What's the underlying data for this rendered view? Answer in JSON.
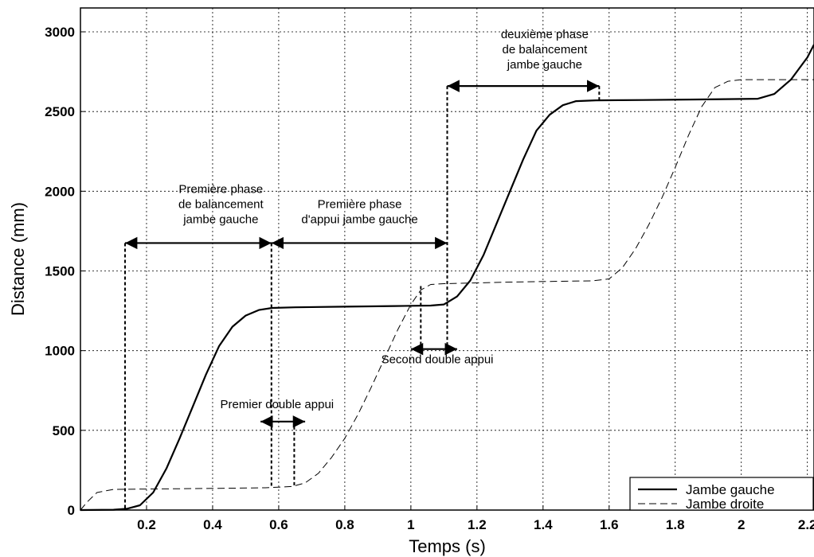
{
  "chart_data": {
    "type": "line",
    "xlabel": "Temps (s)",
    "ylabel": "Distance (mm)",
    "xlim": [
      0,
      2.22
    ],
    "ylim": [
      0,
      3000
    ],
    "grid": true,
    "legend_position": "bottom-right",
    "x_ticks": [
      "0.2",
      "0.4",
      "0.6",
      "0.8",
      "1",
      "1.2",
      "1.4",
      "1.6",
      "1.8",
      "2",
      "2.2"
    ],
    "y_ticks": [
      "0",
      "500",
      "1000",
      "1500",
      "2000",
      "2500",
      "3000"
    ],
    "series": [
      {
        "name": "Jambe gauche",
        "style": "solid",
        "points": [
          [
            0,
            0
          ],
          [
            0.1,
            2
          ],
          [
            0.14,
            8
          ],
          [
            0.18,
            30
          ],
          [
            0.22,
            110
          ],
          [
            0.26,
            260
          ],
          [
            0.3,
            450
          ],
          [
            0.34,
            650
          ],
          [
            0.38,
            850
          ],
          [
            0.42,
            1030
          ],
          [
            0.46,
            1150
          ],
          [
            0.5,
            1220
          ],
          [
            0.54,
            1255
          ],
          [
            0.58,
            1268
          ],
          [
            0.65,
            1272
          ],
          [
            0.8,
            1276
          ],
          [
            0.95,
            1280
          ],
          [
            1.06,
            1283
          ],
          [
            1.1,
            1290
          ],
          [
            1.14,
            1340
          ],
          [
            1.18,
            1440
          ],
          [
            1.22,
            1600
          ],
          [
            1.26,
            1800
          ],
          [
            1.3,
            2000
          ],
          [
            1.34,
            2200
          ],
          [
            1.38,
            2380
          ],
          [
            1.42,
            2480
          ],
          [
            1.46,
            2540
          ],
          [
            1.5,
            2565
          ],
          [
            1.56,
            2570
          ],
          [
            1.7,
            2572
          ],
          [
            1.9,
            2576
          ],
          [
            2.05,
            2580
          ],
          [
            2.1,
            2610
          ],
          [
            2.15,
            2700
          ],
          [
            2.2,
            2840
          ],
          [
            2.22,
            2920
          ]
        ]
      },
      {
        "name": "Jambe droite",
        "style": "dashed",
        "points": [
          [
            0,
            0
          ],
          [
            0.02,
            50
          ],
          [
            0.05,
            110
          ],
          [
            0.1,
            130
          ],
          [
            0.2,
            132
          ],
          [
            0.4,
            136
          ],
          [
            0.56,
            140
          ],
          [
            0.64,
            148
          ],
          [
            0.68,
            170
          ],
          [
            0.72,
            230
          ],
          [
            0.76,
            330
          ],
          [
            0.8,
            450
          ],
          [
            0.84,
            600
          ],
          [
            0.88,
            770
          ],
          [
            0.92,
            950
          ],
          [
            0.96,
            1130
          ],
          [
            1.0,
            1290
          ],
          [
            1.03,
            1380
          ],
          [
            1.06,
            1415
          ],
          [
            1.1,
            1420
          ],
          [
            1.3,
            1430
          ],
          [
            1.45,
            1435
          ],
          [
            1.55,
            1438
          ],
          [
            1.6,
            1450
          ],
          [
            1.64,
            1520
          ],
          [
            1.68,
            1640
          ],
          [
            1.72,
            1790
          ],
          [
            1.76,
            1960
          ],
          [
            1.8,
            2150
          ],
          [
            1.84,
            2350
          ],
          [
            1.88,
            2530
          ],
          [
            1.92,
            2650
          ],
          [
            1.96,
            2690
          ],
          [
            2.0,
            2700
          ],
          [
            2.22,
            2700
          ]
        ]
      }
    ],
    "annotations": [
      {
        "id": "prem-balancement",
        "lines": [
          "Première phase",
          "de balancement",
          "jambe gauche"
        ]
      },
      {
        "id": "prem-appui",
        "lines": [
          "Première phase",
          "d'appui jambe gauche"
        ]
      },
      {
        "id": "deux-balancement",
        "lines": [
          "deuxième phase",
          "de balancement",
          "jambe gauche"
        ]
      },
      {
        "id": "prem-double",
        "lines": [
          "Premier double appui"
        ]
      },
      {
        "id": "second-double",
        "lines": [
          "Second double appui"
        ]
      }
    ]
  },
  "colors": {
    "line": "#000000",
    "grid": "#000000",
    "background": "#ffffff"
  }
}
